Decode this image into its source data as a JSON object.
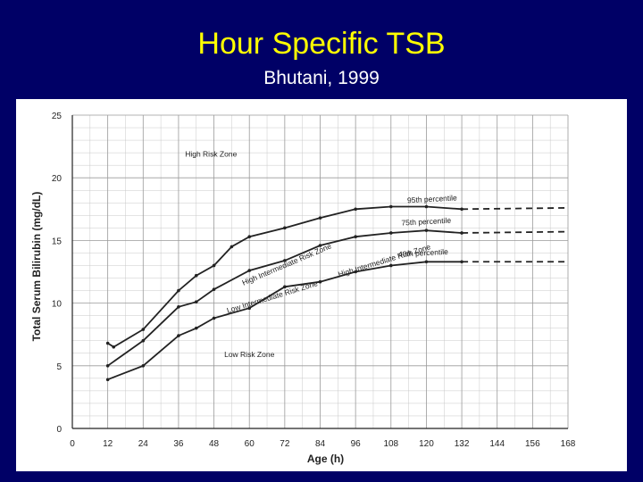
{
  "slide": {
    "title": "Hour Specific TSB",
    "subtitle": "Bhutani, 1999"
  },
  "colors": {
    "background": "#000066",
    "title": "#ffff00",
    "subtitle": "#ffffff",
    "plot_background": "#ffffff",
    "grid": "#c8c8c8",
    "ink": "#222222"
  },
  "chart_data": {
    "type": "line",
    "xlabel": "Age (h)",
    "ylabel": "Total Serum Bilirubin (mg/dL)",
    "xlim": [
      0,
      168
    ],
    "ylim": [
      0,
      25
    ],
    "xticks": [
      "0",
      "12",
      "24",
      "36",
      "48",
      "60",
      "72",
      "84",
      "96",
      "108",
      "120",
      "132",
      "144",
      "156",
      "168"
    ],
    "yticks": [
      "0",
      "5",
      "10",
      "15",
      "20",
      "25"
    ],
    "grid": true,
    "series": [
      {
        "name": "95th percentile",
        "points": [
          [
            12,
            6.8
          ],
          [
            14,
            6.5
          ],
          [
            24,
            7.9
          ],
          [
            36,
            11
          ],
          [
            42,
            12.2
          ],
          [
            48,
            13
          ],
          [
            54,
            14.5
          ],
          [
            60,
            15.3
          ],
          [
            72,
            16
          ],
          [
            84,
            16.8
          ],
          [
            96,
            17.5
          ],
          [
            108,
            17.7
          ],
          [
            120,
            17.7
          ],
          [
            132,
            17.5
          ]
        ],
        "extrapolation": [
          [
            132,
            17.5
          ],
          [
            168,
            17.6
          ]
        ]
      },
      {
        "name": "75th percentile",
        "points": [
          [
            12,
            5
          ],
          [
            24,
            7
          ],
          [
            36,
            9.7
          ],
          [
            42,
            10.1
          ],
          [
            48,
            11.1
          ],
          [
            60,
            12.6
          ],
          [
            72,
            13.4
          ],
          [
            84,
            14.6
          ],
          [
            96,
            15.3
          ],
          [
            108,
            15.6
          ],
          [
            120,
            15.8
          ],
          [
            132,
            15.6
          ]
        ],
        "extrapolation": [
          [
            132,
            15.6
          ],
          [
            168,
            15.7
          ]
        ]
      },
      {
        "name": "40th percentile",
        "points": [
          [
            12,
            3.9
          ],
          [
            24,
            5
          ],
          [
            36,
            7.4
          ],
          [
            42,
            8
          ],
          [
            48,
            8.8
          ],
          [
            60,
            9.6
          ],
          [
            72,
            11.3
          ],
          [
            84,
            11.7
          ],
          [
            96,
            12.5
          ],
          [
            108,
            13
          ],
          [
            120,
            13.3
          ],
          [
            132,
            13.3
          ]
        ],
        "extrapolation": [
          [
            132,
            13.3
          ],
          [
            168,
            13.3
          ]
        ]
      }
    ],
    "annotations": [
      {
        "text": "High Risk Zone",
        "x": 47,
        "y": 21.7,
        "angle": 0
      },
      {
        "text": "95th percentile",
        "x": 122,
        "y": 18.1,
        "angle": -3
      },
      {
        "text": "75th percentile",
        "x": 120,
        "y": 16.3,
        "angle": -3
      },
      {
        "text": "High Intermediate Risk Zone",
        "x": 106,
        "y": 13.2,
        "angle": -17
      },
      {
        "text": "40th percentile",
        "x": 119,
        "y": 13.8,
        "angle": -3
      },
      {
        "text": "High Intermediate Risk Zone",
        "x": 73,
        "y": 12.9,
        "angle": -23
      },
      {
        "text": "Low Intermediate Risk Zone",
        "x": 68,
        "y": 10.3,
        "angle": -17
      },
      {
        "text": "Low Risk Zone",
        "x": 60,
        "y": 5.7,
        "angle": 0
      }
    ]
  }
}
